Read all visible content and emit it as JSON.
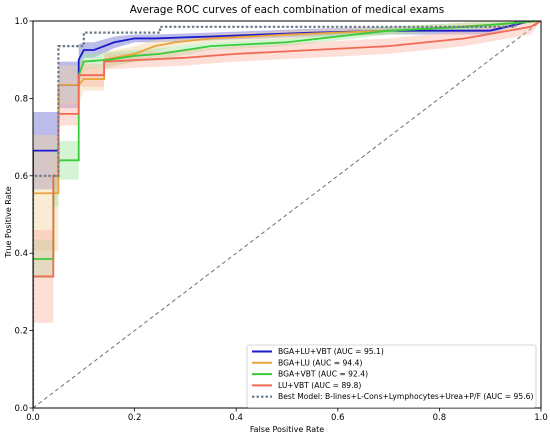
{
  "chart_data": {
    "type": "line",
    "title": "Average ROC curves of each combination of medical exams",
    "xlabel": "False Positive Rate",
    "ylabel": "True Positive Rate",
    "xlim": [
      0,
      1
    ],
    "ylim": [
      0,
      1
    ],
    "xticks": [
      "0.0",
      "0.2",
      "0.4",
      "0.6",
      "0.8",
      "1.0"
    ],
    "yticks": [
      "0.0",
      "0.2",
      "0.4",
      "0.6",
      "0.8",
      "1.0"
    ],
    "grid": false,
    "legend_position": "lower-right",
    "diagonal": {
      "style": "dashed",
      "color": "#6f6f6f"
    },
    "series": [
      {
        "name": "BGA+LU+VBT (AUC = 95.1)",
        "color": "#1a1acc",
        "fill": "#6a6ad0",
        "x": [
          0,
          0,
          0.05,
          0.05,
          0.09,
          0.09,
          0.1,
          0.12,
          0.16,
          0.2,
          0.24,
          0.35,
          0.55,
          0.7,
          0.9,
          0.98,
          1.0
        ],
        "y": [
          0,
          0.665,
          0.665,
          0.835,
          0.835,
          0.9,
          0.925,
          0.925,
          0.945,
          0.955,
          0.955,
          0.96,
          0.97,
          0.975,
          0.975,
          1.0,
          1.0
        ],
        "band": [
          0.1,
          0.1,
          0.1,
          0.06,
          0.06,
          0.04,
          0.02,
          0.02,
          0.015,
          0.01,
          0.01,
          0.01,
          0.01,
          0.01,
          0.01,
          0,
          0
        ]
      },
      {
        "name": "BGA+LU (AUC = 94.4)",
        "color": "#e8a33c",
        "fill": "#f5d49d",
        "x": [
          0,
          0,
          0.05,
          0.05,
          0.09,
          0.1,
          0.14,
          0.14,
          0.2,
          0.24,
          0.28,
          0.35,
          0.5,
          0.7,
          0.9,
          1.0
        ],
        "y": [
          0,
          0.555,
          0.555,
          0.835,
          0.835,
          0.85,
          0.85,
          0.9,
          0.915,
          0.935,
          0.945,
          0.955,
          0.965,
          0.975,
          0.99,
          1.0
        ],
        "band": [
          0.15,
          0.15,
          0.15,
          0.05,
          0.05,
          0.03,
          0.03,
          0.02,
          0.02,
          0.015,
          0.01,
          0.01,
          0.01,
          0.01,
          0.01,
          0
        ]
      },
      {
        "name": "BGA+VBT (AUC = 92.4)",
        "color": "#38cc38",
        "fill": "#9fe6a0",
        "x": [
          0,
          0,
          0.04,
          0.04,
          0.05,
          0.05,
          0.09,
          0.09,
          0.1,
          0.15,
          0.2,
          0.25,
          0.35,
          0.5,
          0.6,
          0.7,
          0.85,
          1.0
        ],
        "y": [
          0,
          0.385,
          0.385,
          0.6,
          0.6,
          0.64,
          0.64,
          0.86,
          0.895,
          0.9,
          0.91,
          0.915,
          0.935,
          0.945,
          0.96,
          0.975,
          0.985,
          1.0
        ],
        "band": [
          0.05,
          0.05,
          0.05,
          0.08,
          0.08,
          0.05,
          0.05,
          0.04,
          0.02,
          0.02,
          0.015,
          0.015,
          0.01,
          0.01,
          0.01,
          0.01,
          0.01,
          0
        ]
      },
      {
        "name": "LU+VBT (AUC = 89.8)",
        "color": "#f06a52",
        "fill": "#fbb8a8",
        "x": [
          0,
          0,
          0.04,
          0.04,
          0.05,
          0.05,
          0.09,
          0.09,
          0.14,
          0.14,
          0.3,
          0.4,
          0.55,
          0.7,
          0.85,
          0.98,
          1.0
        ],
        "y": [
          0,
          0.34,
          0.34,
          0.6,
          0.6,
          0.76,
          0.76,
          0.86,
          0.86,
          0.895,
          0.905,
          0.915,
          0.925,
          0.935,
          0.955,
          0.985,
          1.0
        ],
        "band": [
          0.12,
          0.12,
          0.12,
          0.05,
          0.05,
          0.03,
          0.03,
          0.03,
          0.03,
          0.02,
          0.02,
          0.02,
          0.02,
          0.02,
          0.02,
          0.02,
          0
        ]
      },
      {
        "name": "Best Model: B-lines+L-Cons+Lymphocytes+Urea+P/F (AUC = 95.6)",
        "color": "#6b7b8c",
        "dashed": true,
        "x": [
          0,
          0,
          0.05,
          0.05,
          0.1,
          0.1,
          0.2,
          0.2,
          0.25,
          0.25,
          0.95,
          0.95,
          1.0
        ],
        "y": [
          0,
          0.6,
          0.6,
          0.935,
          0.935,
          0.97,
          0.97,
          0.97,
          0.97,
          0.985,
          0.985,
          1.0,
          1.0
        ]
      }
    ]
  }
}
